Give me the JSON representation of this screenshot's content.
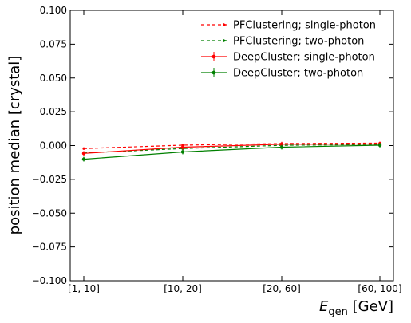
{
  "chart_data": {
    "type": "line",
    "categories": [
      "[1, 10]",
      "[10, 20]",
      "[20, 60]",
      "[60, 100]"
    ],
    "ylim": [
      -0.1,
      0.1
    ],
    "yticks": [
      -0.1,
      -0.075,
      -0.05,
      -0.025,
      0.0,
      0.025,
      0.05,
      0.075,
      0.1
    ],
    "ytick_labels": [
      "−0.100",
      "−0.075",
      "−0.050",
      "−0.025",
      "0.000",
      "0.025",
      "0.050",
      "0.075",
      "0.100"
    ],
    "ylabel": "position median [crystal]",
    "xlabel_main": "E",
    "xlabel_sub": "gen",
    "xlabel_unit": " [GeV]",
    "legend_position": "top-right",
    "grid": false,
    "series": [
      {
        "name": "PFClustering; single-photon",
        "values": [
          -0.0022,
          0.0003,
          0.0015,
          0.0018
        ],
        "color": "#ff0000",
        "dashed": true,
        "errorbars": false
      },
      {
        "name": "PFClustering; two-photon",
        "values": [
          -0.0055,
          -0.0022,
          0.0002,
          0.0008
        ],
        "color": "#008000",
        "dashed": true,
        "errorbars": false
      },
      {
        "name": "DeepCluster; single-photon",
        "values": [
          -0.0058,
          -0.0012,
          0.001,
          0.0012
        ],
        "color": "#ff0000",
        "dashed": false,
        "errorbars": true
      },
      {
        "name": "DeepCluster; two-photon",
        "values": [
          -0.0101,
          -0.0047,
          -0.0012,
          0.0003
        ],
        "color": "#008000",
        "dashed": false,
        "errorbars": true
      }
    ]
  }
}
